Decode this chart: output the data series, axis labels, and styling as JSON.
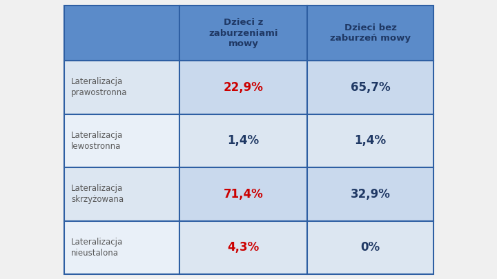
{
  "header_col1": "Dzieci z\nzaburzeniami\nmowy",
  "header_col2": "Dzieci bez\nzaburzeń mowy",
  "rows": [
    {
      "label": "Lateralizacja\nprawostronna",
      "val1": "22,9%",
      "val2": "65,7%",
      "val1_color": "#cc0000",
      "val2_color": "#1f3864"
    },
    {
      "label": "Lateralizacja\nlewostronna",
      "val1": "1,4%",
      "val2": "1,4%",
      "val1_color": "#1f3864",
      "val2_color": "#1f3864"
    },
    {
      "label": "Lateralizacja\nskrzyżowana",
      "val1": "71,4%",
      "val2": "32,9%",
      "val1_color": "#cc0000",
      "val2_color": "#1f3864"
    },
    {
      "label": "Lateralizacja\nnieustalona",
      "val1": "4,3%",
      "val2": "0%",
      "val1_color": "#cc0000",
      "val2_color": "#1f3864"
    }
  ],
  "header_bg": "#5b8bc9",
  "cell_bg_row0": "#c9d9ed",
  "cell_bg_row1": "#dce6f1",
  "cell_bg_row2": "#c9d9ed",
  "cell_bg_row3": "#dce6f1",
  "label_bg_row0": "#dce6f1",
  "label_bg_row1": "#e9f0f8",
  "label_bg_row2": "#dce6f1",
  "label_bg_row3": "#e9f0f8",
  "header_text_color": "#1f3864",
  "label_text_color": "#595959",
  "border_color": "#2e5fa3",
  "background_color": "#f0f0f0",
  "header_fontsize": 9.5,
  "label_fontsize": 8.5,
  "value_fontsize": 12
}
